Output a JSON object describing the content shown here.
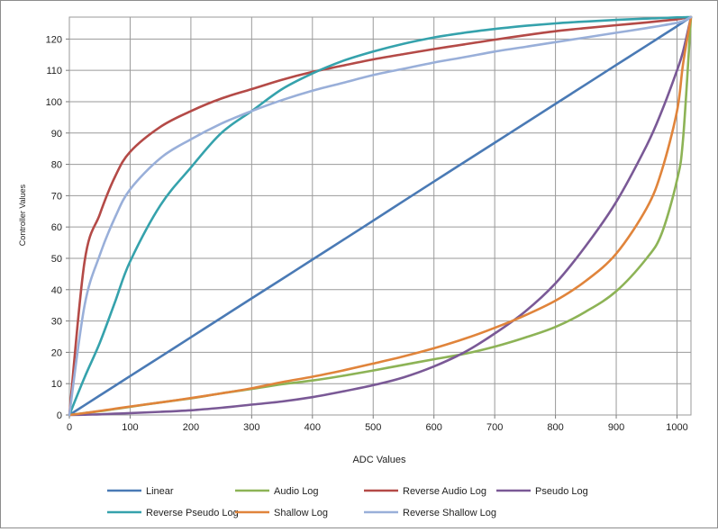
{
  "chart_data": {
    "type": "line",
    "title": "",
    "xlabel": "ADC Values",
    "ylabel": "Controller Values",
    "xlim": [
      0,
      1023
    ],
    "ylim": [
      0,
      127
    ],
    "x_ticks": [
      0,
      100,
      200,
      300,
      400,
      500,
      600,
      700,
      800,
      900,
      1000
    ],
    "y_ticks": [
      0,
      10,
      20,
      30,
      40,
      50,
      60,
      70,
      80,
      90,
      100,
      110,
      120
    ],
    "grid": true,
    "legend_position": "bottom",
    "x": [
      0,
      25,
      50,
      75,
      100,
      150,
      200,
      250,
      300,
      350,
      400,
      450,
      500,
      550,
      600,
      650,
      700,
      750,
      800,
      850,
      900,
      950,
      975,
      1000,
      1010,
      1023
    ],
    "series": [
      {
        "name": "Linear",
        "color": "#4a7ab5",
        "values": [
          0,
          3.1,
          6.2,
          9.3,
          12.4,
          18.6,
          24.8,
          31,
          37.2,
          43.4,
          49.6,
          55.8,
          62,
          68.3,
          74.5,
          80.7,
          86.9,
          93.1,
          99.3,
          105.5,
          111.7,
          117.9,
          121,
          124.1,
          125.4,
          127
        ]
      },
      {
        "name": "Audio Log",
        "color": "#8db356",
        "values": [
          0,
          0.6,
          1.2,
          1.9,
          2.6,
          4,
          5.3,
          6.9,
          8.3,
          9.8,
          11,
          12.5,
          14.2,
          16,
          17.8,
          19.5,
          21.8,
          24.7,
          28.1,
          33,
          39.5,
          50,
          58,
          75,
          88,
          127
        ]
      },
      {
        "name": "Reverse Audio Log",
        "color": "#b44a47",
        "values": [
          0,
          49,
          64,
          76,
          84,
          92,
          97,
          101,
          104,
          107,
          109.5,
          111.5,
          113.5,
          115.2,
          116.8,
          118.3,
          119.8,
          121.2,
          122.5,
          123.5,
          124.4,
          125.3,
          125.8,
          126.3,
          126.6,
          127
        ]
      },
      {
        "name": "Pseudo Log",
        "color": "#7a5996",
        "values": [
          0,
          0.1,
          0.2,
          0.4,
          0.6,
          1,
          1.5,
          2.3,
          3.3,
          4.3,
          5.7,
          7.5,
          9.5,
          12,
          15.5,
          20,
          26,
          33,
          42,
          54,
          68,
          86,
          97,
          110,
          116,
          127
        ]
      },
      {
        "name": "Reverse Pseudo Log",
        "color": "#35a2ac",
        "values": [
          0,
          12,
          23,
          36,
          49,
          67,
          79,
          90,
          97,
          104,
          109,
          113,
          116,
          118.5,
          120.5,
          122,
          123.2,
          124.2,
          125,
          125.6,
          126.1,
          126.5,
          126.7,
          126.9,
          126.95,
          127
        ]
      },
      {
        "name": "Shallow Log",
        "color": "#e0843b",
        "values": [
          0,
          0.6,
          1.3,
          2,
          2.7,
          4,
          5.4,
          6.9,
          8.5,
          10.5,
          12.2,
          14.2,
          16.4,
          18.7,
          21.3,
          24.3,
          27.8,
          31.8,
          36.5,
          42.8,
          51.5,
          66,
          78,
          97,
          112,
          127
        ]
      },
      {
        "name": "Reverse Shallow Log",
        "color": "#99afd9",
        "values": [
          0,
          35,
          51,
          63,
          72,
          82,
          88,
          93,
          97,
          100.5,
          103.5,
          106,
          108.5,
          110.5,
          112.5,
          114.2,
          116,
          117.5,
          119,
          120.5,
          122,
          123.5,
          124.3,
          125.2,
          125.7,
          127
        ]
      }
    ]
  }
}
